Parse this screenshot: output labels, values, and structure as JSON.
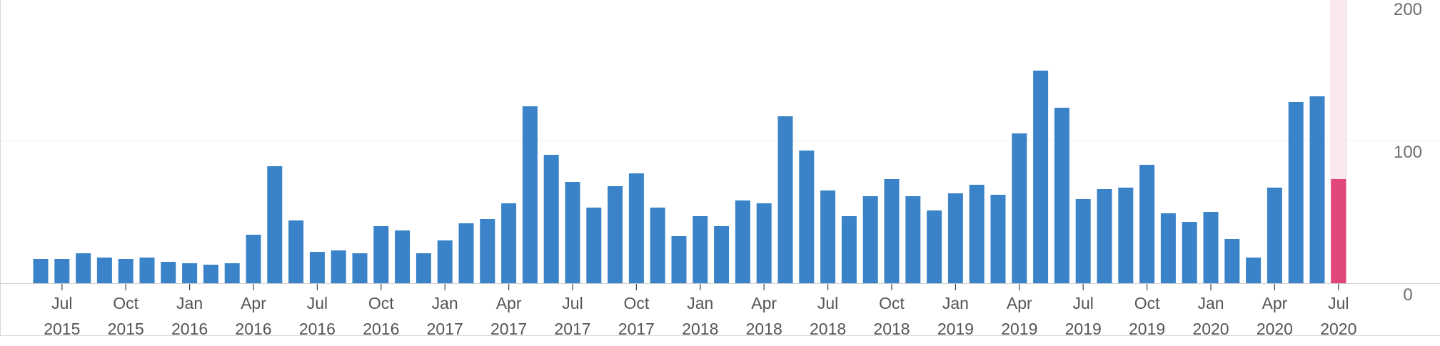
{
  "chart_data": {
    "type": "bar",
    "x": [
      "2015-06",
      "2015-07",
      "2015-08",
      "2015-09",
      "2015-10",
      "2015-11",
      "2015-12",
      "2016-01",
      "2016-02",
      "2016-03",
      "2016-04",
      "2016-05",
      "2016-06",
      "2016-07",
      "2016-08",
      "2016-09",
      "2016-10",
      "2016-11",
      "2016-12",
      "2017-01",
      "2017-02",
      "2017-03",
      "2017-04",
      "2017-05",
      "2017-06",
      "2017-07",
      "2017-08",
      "2017-09",
      "2017-10",
      "2017-11",
      "2017-12",
      "2018-01",
      "2018-02",
      "2018-03",
      "2018-04",
      "2018-05",
      "2018-06",
      "2018-07",
      "2018-08",
      "2018-09",
      "2018-10",
      "2018-11",
      "2018-12",
      "2019-01",
      "2019-02",
      "2019-03",
      "2019-04",
      "2019-05",
      "2019-06",
      "2019-07",
      "2019-08",
      "2019-09",
      "2019-10",
      "2019-11",
      "2019-12",
      "2020-01",
      "2020-02",
      "2020-03",
      "2020-04",
      "2020-05",
      "2020-06",
      "2020-07"
    ],
    "values": [
      17,
      17,
      21,
      18,
      17,
      18,
      15,
      14,
      13,
      14,
      34,
      82,
      44,
      22,
      23,
      21,
      40,
      37,
      21,
      30,
      42,
      45,
      56,
      124,
      90,
      71,
      53,
      68,
      77,
      53,
      33,
      47,
      40,
      58,
      56,
      117,
      93,
      65,
      47,
      61,
      73,
      61,
      51,
      63,
      69,
      62,
      105,
      149,
      123,
      59,
      66,
      67,
      83,
      49,
      43,
      50,
      31,
      18,
      67,
      127,
      131,
      73
    ],
    "highlight_index": 61,
    "tick_labels": [
      {
        "x": "2015-07",
        "month": "Jul",
        "year": "2015"
      },
      {
        "x": "2015-10",
        "month": "Oct",
        "year": "2015"
      },
      {
        "x": "2016-01",
        "month": "Jan",
        "year": "2016"
      },
      {
        "x": "2016-04",
        "month": "Apr",
        "year": "2016"
      },
      {
        "x": "2016-07",
        "month": "Jul",
        "year": "2016"
      },
      {
        "x": "2016-10",
        "month": "Oct",
        "year": "2016"
      },
      {
        "x": "2017-01",
        "month": "Jan",
        "year": "2017"
      },
      {
        "x": "2017-04",
        "month": "Apr",
        "year": "2017"
      },
      {
        "x": "2017-07",
        "month": "Jul",
        "year": "2017"
      },
      {
        "x": "2017-10",
        "month": "Oct",
        "year": "2017"
      },
      {
        "x": "2018-01",
        "month": "Jan",
        "year": "2018"
      },
      {
        "x": "2018-04",
        "month": "Apr",
        "year": "2018"
      },
      {
        "x": "2018-07",
        "month": "Jul",
        "year": "2018"
      },
      {
        "x": "2018-10",
        "month": "Oct",
        "year": "2018"
      },
      {
        "x": "2019-01",
        "month": "Jan",
        "year": "2019"
      },
      {
        "x": "2019-04",
        "month": "Apr",
        "year": "2019"
      },
      {
        "x": "2019-07",
        "month": "Jul",
        "year": "2019"
      },
      {
        "x": "2019-10",
        "month": "Oct",
        "year": "2019"
      },
      {
        "x": "2020-01",
        "month": "Jan",
        "year": "2020"
      },
      {
        "x": "2020-04",
        "month": "Apr",
        "year": "2020"
      },
      {
        "x": "2020-07",
        "month": "Jul",
        "year": "2020"
      }
    ],
    "ylim": [
      0,
      200
    ],
    "yticks": [
      0,
      100,
      200
    ],
    "grid": true,
    "y_axis_side": "right",
    "title": "",
    "xlabel": "",
    "ylabel": "",
    "colors": {
      "bar": "#3a83c8",
      "highlight_bar": "#e0457b",
      "highlight_band": "#f9e8ee",
      "gridline": "#ececec",
      "baseline": "#cfcfcf"
    }
  }
}
